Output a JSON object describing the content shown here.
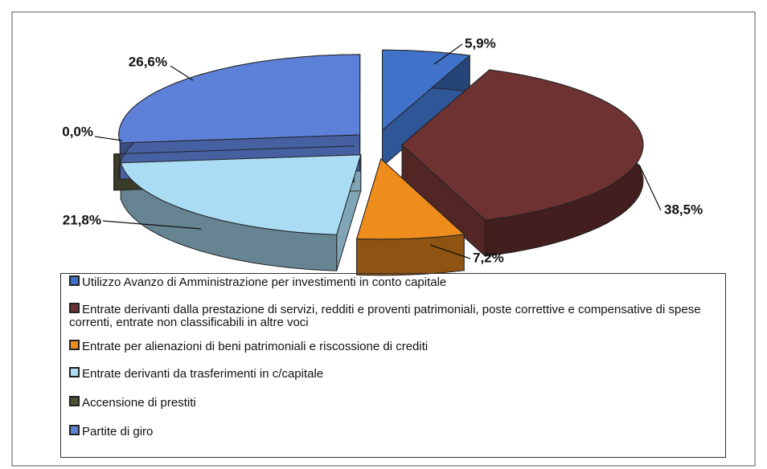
{
  "chart_data": {
    "type": "pie",
    "categories": [
      "Utilizzo Avanzo di Amministrazione per investimenti in conto capitale",
      "Entrate derivanti dalla prestazione di servizi, redditi e proventi patrimoniali, poste correttive e compensative di spese correnti, entrate non classificabili in altre voci",
      "Entrate per alienazioni di beni patrimoniali e riscossione di crediti",
      "Entrate derivanti da trasferimenti in c/capitale",
      "Accensione di prestiti",
      "Partite di giro"
    ],
    "values": [
      5.9,
      38.5,
      7.2,
      21.8,
      0.0,
      26.6
    ],
    "value_labels": [
      "5,9%",
      "38,5%",
      "7,2%",
      "21,8%",
      "0,0%",
      "26,6%"
    ],
    "colors": [
      "#3f72c8",
      "#6e3232",
      "#ee8c1c",
      "#aadcf4",
      "#4e5034",
      "#5d80d8"
    ]
  }
}
